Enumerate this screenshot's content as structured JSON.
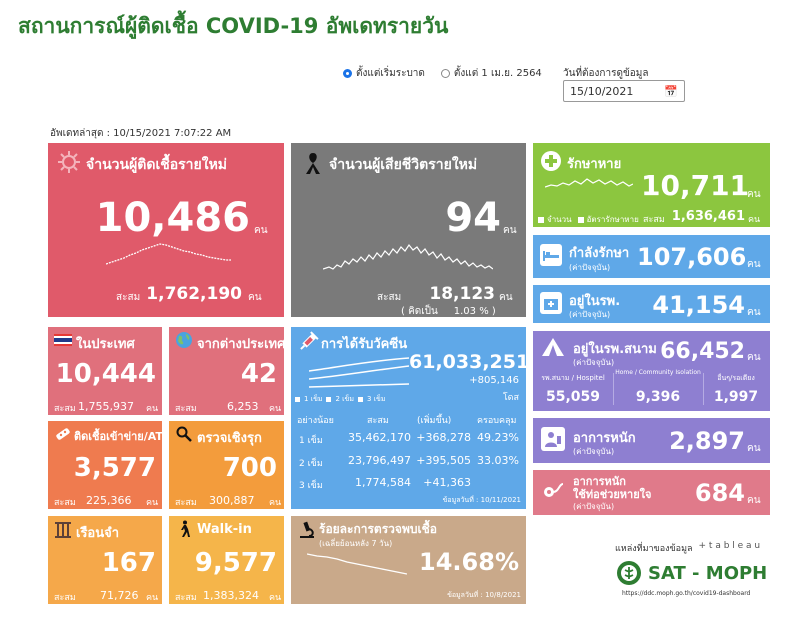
{
  "title": "สถานการณ์ผู้ติดเชื้อ COVID-19 อัพเดทรายวัน",
  "filters": {
    "option_since_start": "ตั้งแต่เริ่มระบาด",
    "option_since_april": "ตั้งแต่ 1 เม.ย. 2564",
    "date_label": "วันที่ต้องการดูข้อมูล",
    "date_value": "15/10/2021"
  },
  "last_updated": "อัพเดทล่าสุด : 10/15/2021 7:07:22 AM",
  "new_cases": {
    "label": "จำนวนผู้ติดเชื้อรายใหม่",
    "value": "10,486",
    "unit": "คน",
    "cum_label": "สะสม",
    "cum_value": "1,762,190",
    "cum_unit": "คน"
  },
  "new_deaths": {
    "label": "จำนวนผู้เสียชีวิตรายใหม่",
    "value": "94",
    "unit": "คน",
    "cum_label": "สะสม",
    "cum_value": "18,123",
    "cum_unit": "คน",
    "rate_text": "( คิดเป็น     1.03 % )"
  },
  "recovered": {
    "label": "รักษาหาย",
    "value": "10,711",
    "unit": "คน",
    "legend_count": "จำนวน",
    "legend_rate": "อัตรารักษาหาย",
    "cum_label": "สะสม",
    "cum_value": "1,636,461",
    "cum_unit": "คน"
  },
  "in_treatment": {
    "label": "กำลังรักษา",
    "sub": "(ค่าปัจจุบัน)",
    "value": "107,606",
    "unit": "คน"
  },
  "in_hospital": {
    "label": "อยู่ในรพ.",
    "sub": "(ค่าปัจจุบัน)",
    "value": "41,154",
    "unit": "คน"
  },
  "field_hospital": {
    "label": "อยู่ในรพ.สนาม",
    "sub": "(ค่าปัจจุบัน)",
    "value": "66,452",
    "unit": "คน",
    "col1_label": "รพ.สนาม / Hospitel",
    "col1_value": "55,059",
    "col2_label": "Home / Community Isolation",
    "col2_value": "9,396",
    "col3_label": "อื่นๆ/รอเตียง",
    "col3_value": "1,997"
  },
  "severe": {
    "label": "อาการหนัก",
    "sub": "(ค่าปัจจุบัน)",
    "value": "2,897",
    "unit": "คน"
  },
  "ventilator": {
    "label1": "อาการหนัก",
    "label2": "ใช้ท่อช่วยหายใจ",
    "sub": "(ค่าปัจจุบัน)",
    "value": "684",
    "unit": "คน"
  },
  "domestic": {
    "label": "ในประเทศ",
    "value": "10,444",
    "cum_label": "สะสม",
    "cum_value": "1,755,937",
    "cum_unit": "คน"
  },
  "imported": {
    "label": "จากต่างประเทศ",
    "value": "42",
    "cum_label": "สะสม",
    "cum_value": "6,253",
    "cum_unit": "คน"
  },
  "prison_atk": {
    "label": "ติดเชื้อเข้าข่าย/ATK",
    "value": "3,577",
    "cum_label": "สะสม",
    "cum_value": "225,366",
    "cum_unit": "คน"
  },
  "active_search": {
    "label": "ตรวจเชิงรุก",
    "value": "700",
    "cum_label": "สะสม",
    "cum_value": "300,887",
    "cum_unit": "คน"
  },
  "prison": {
    "label": "เรือนจำ",
    "value": "167",
    "cum_label": "สะสม",
    "cum_value": "71,726",
    "cum_unit": "คน"
  },
  "walk_in": {
    "label": "Walk-in",
    "value": "9,577",
    "cum_label": "สะสม",
    "cum_value": "1,383,324",
    "cum_unit": "คน"
  },
  "vaccine": {
    "label": "การได้รับวัคซีน",
    "total": "61,033,251",
    "increase": "+805,146",
    "unit": "โดส",
    "legend": [
      "1 เข็ม",
      "2 เข็ม",
      "3 เข็ม"
    ],
    "headers": [
      "อย่างน้อย",
      "สะสม",
      "(เพิ่มขึ้น)",
      "ครอบคลุม"
    ],
    "rows": [
      {
        "dose": "1 เข็ม",
        "cum": "35,462,170",
        "inc": "+368,278",
        "cov": "49.23%"
      },
      {
        "dose": "2 เข็ม",
        "cum": "23,796,497",
        "inc": "+395,505",
        "cov": "33.03%"
      },
      {
        "dose": "3 เข็ม",
        "cum": "1,774,584",
        "inc": "+41,363",
        "cov": ""
      }
    ],
    "footnote": "ข้อมูลวันที่ : 10/11/2021"
  },
  "positivity": {
    "label": "ร้อยละการตรวจพบเชื้อ",
    "sub": "(เฉลี่ยย้อนหลัง 7 วัน)",
    "value": "14.68%",
    "footnote": "ข้อมูลวันที่ : 10/8/2021"
  },
  "source": {
    "label": "แหล่งที่มาของข้อมูล",
    "tableau": "+ t a b l e a u",
    "org": "SAT - MOPH",
    "url": "https://ddc.moph.go.th/covid19-dashboard"
  },
  "colors": {
    "red": "#e05a6a",
    "gray": "#7a7a7a",
    "green": "#8cc63f",
    "blue": "#5fa8e8",
    "purple": "#8e7fd1",
    "pink": "#e07a8a",
    "orange": "#f09a3a",
    "tan": "#c9a98a"
  }
}
